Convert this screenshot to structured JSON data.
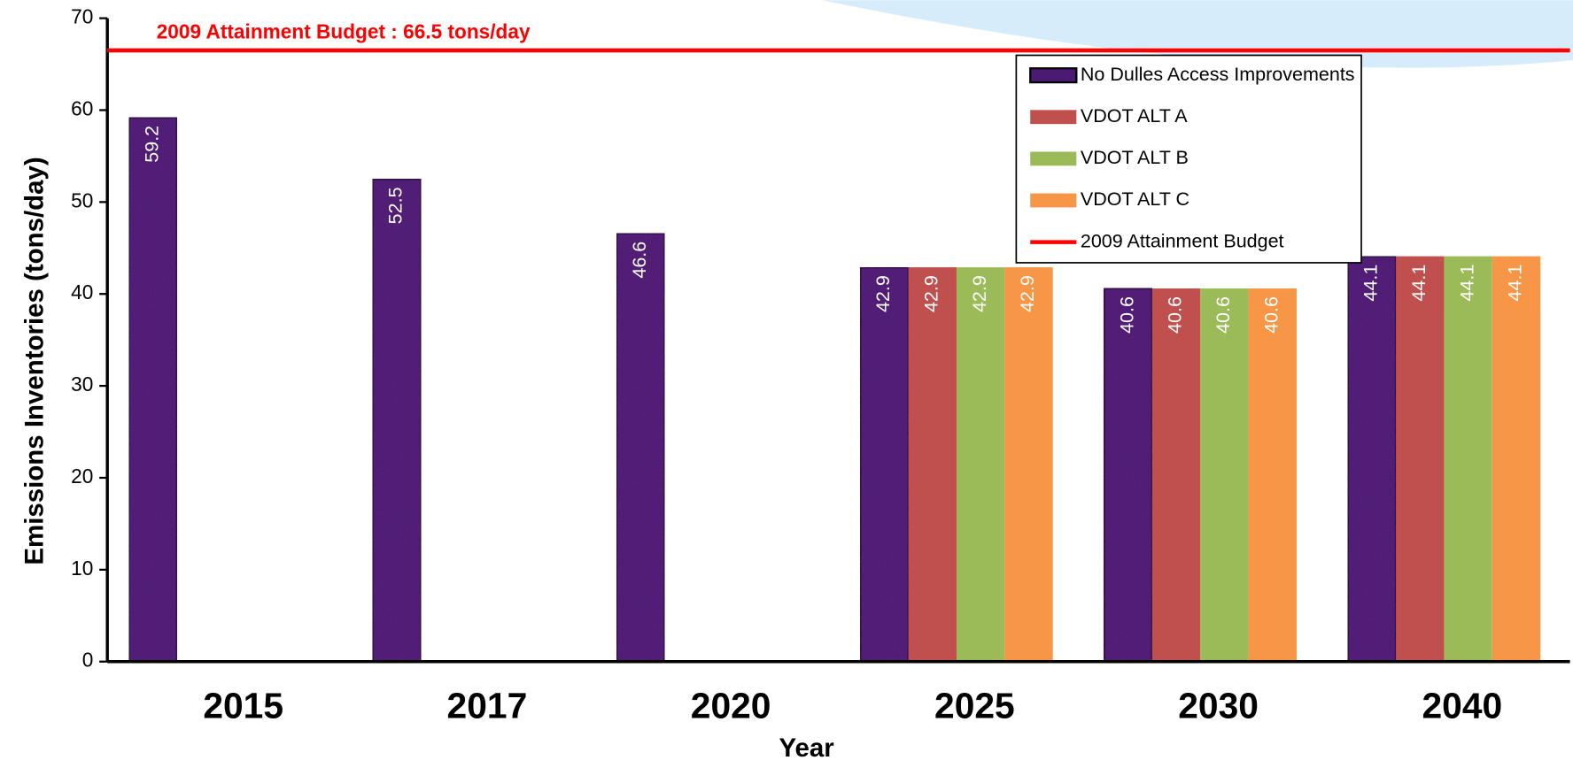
{
  "chart_data": {
    "type": "bar",
    "categories": [
      "2015",
      "2017",
      "2020",
      "2025",
      "2030",
      "2040"
    ],
    "series": [
      {
        "name": "No Dulles Access Improvements",
        "color": "#4b1a72",
        "values": [
          59.2,
          52.5,
          46.6,
          42.9,
          40.6,
          44.1
        ]
      },
      {
        "name": "VDOT ALT A",
        "color": "#c0504d",
        "values": [
          null,
          null,
          null,
          42.9,
          40.6,
          44.1
        ]
      },
      {
        "name": "VDOT ALT B",
        "color": "#9bbb59",
        "values": [
          null,
          null,
          null,
          42.9,
          40.6,
          44.1
        ]
      },
      {
        "name": "VDOT ALT C",
        "color": "#f79646",
        "values": [
          null,
          null,
          null,
          42.9,
          40.6,
          44.1
        ]
      }
    ],
    "reference_line": {
      "name": "2009 Attainment Budget",
      "value": 66.5,
      "color": "#ff0000",
      "label": "2009 Attainment Budget :  66.5 tons/day"
    },
    "x_label": "Year",
    "y_label": "Emissions Inventories (tons/day)",
    "ylim": [
      0,
      70
    ],
    "yticks": [
      0,
      10,
      20,
      30,
      40,
      50,
      60,
      70
    ],
    "legend": "top-right"
  }
}
